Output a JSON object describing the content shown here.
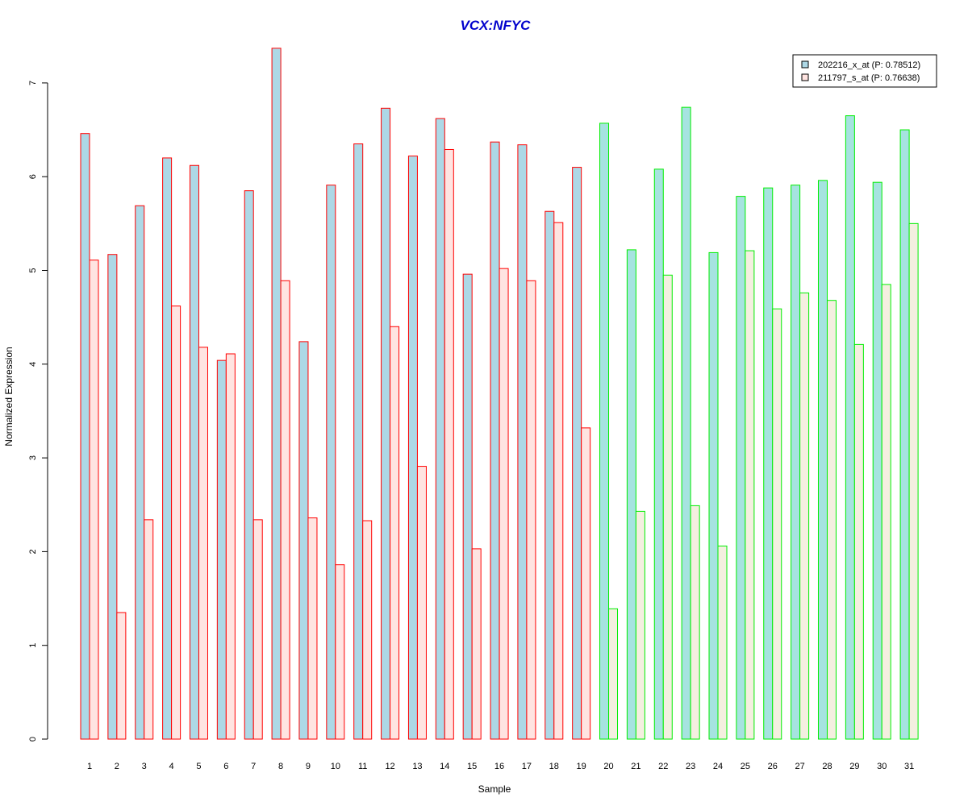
{
  "chart_data": {
    "type": "bar",
    "title": "VCX:NFYC",
    "xlabel": "Sample",
    "ylabel": "Normalized Expression",
    "ylim": [
      0,
      7.37
    ],
    "yticks": [
      0,
      1,
      2,
      3,
      4,
      5,
      6,
      7
    ],
    "grid": false,
    "legend_position": "top-right",
    "categories": [
      "1",
      "2",
      "3",
      "4",
      "5",
      "6",
      "7",
      "8",
      "9",
      "10",
      "11",
      "12",
      "13",
      "14",
      "15",
      "16",
      "17",
      "18",
      "19",
      "20",
      "21",
      "22",
      "23",
      "24",
      "25",
      "26",
      "27",
      "28",
      "29",
      "30",
      "31"
    ],
    "series": [
      {
        "name": "202216_x_at (P: 0.78512)",
        "fill": "#add8e6",
        "values": [
          6.46,
          5.17,
          5.69,
          6.2,
          6.12,
          4.04,
          5.85,
          7.37,
          4.24,
          5.91,
          6.35,
          6.73,
          6.22,
          6.62,
          4.96,
          6.37,
          6.34,
          5.63,
          6.1,
          6.57,
          5.22,
          6.08,
          6.74,
          5.19,
          5.79,
          5.88,
          5.91,
          5.96,
          6.65,
          5.94,
          6.5
        ]
      },
      {
        "name": "211797_s_at (P: 0.76638)",
        "fill": "#ffe4e1",
        "values": [
          5.11,
          1.35,
          2.34,
          4.62,
          4.18,
          4.11,
          2.34,
          4.89,
          2.36,
          1.86,
          2.33,
          4.4,
          2.91,
          6.29,
          2.03,
          5.02,
          4.89,
          5.51,
          3.32,
          1.39,
          2.43,
          4.95,
          2.49,
          2.06,
          5.21,
          4.59,
          4.76,
          4.68,
          4.21,
          4.85,
          5.5
        ]
      }
    ],
    "groups": [
      {
        "first_sample": 1,
        "last_sample": 19,
        "border_color": "#ff0000"
      },
      {
        "first_sample": 20,
        "last_sample": 31,
        "border_color": "#00ee00"
      }
    ],
    "group2_fills": [
      "#a6e3e0",
      "#f4efe0"
    ]
  }
}
